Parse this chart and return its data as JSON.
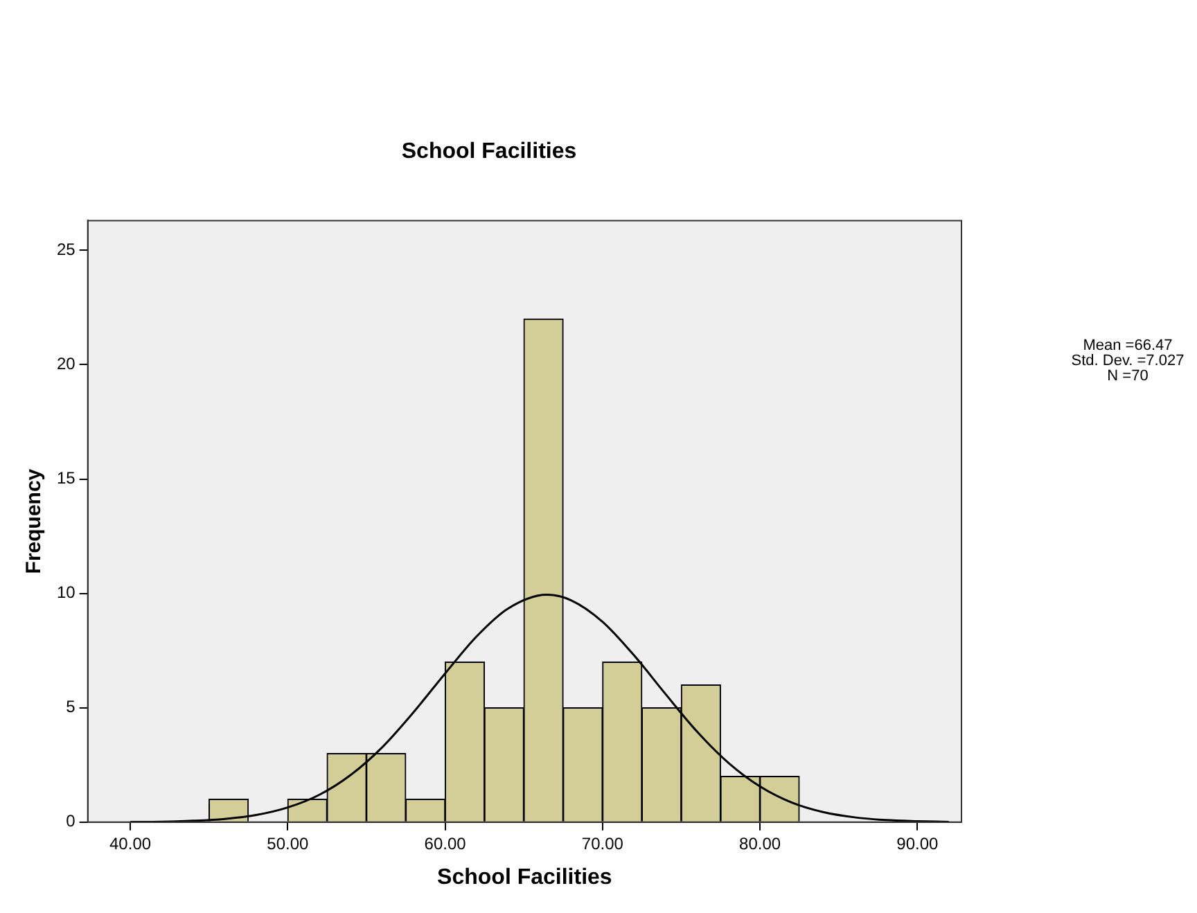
{
  "chart_data": {
    "type": "histogram",
    "title": "School Facilities",
    "xlabel": "School Facilities",
    "ylabel": "Frequency",
    "bins": [
      45,
      47.5,
      50,
      52.5,
      55,
      57.5,
      60,
      62.5,
      65,
      67.5,
      70,
      72.5,
      75,
      77.5,
      80,
      82.5
    ],
    "values": [
      1,
      0,
      1,
      3,
      3,
      1,
      7,
      5,
      22,
      5,
      7,
      5,
      6,
      2,
      2
    ],
    "color": "#d3ce98",
    "series": [
      {
        "type": "line",
        "color": "#000000",
        "x": [
          40,
          42,
          44,
          46,
          48,
          50,
          52,
          54,
          56,
          58,
          60,
          62,
          64,
          66.47,
          68,
          70,
          72,
          74,
          76,
          78,
          80,
          82,
          84,
          86,
          88,
          90,
          92
        ],
        "values": [
          0.01,
          0.02,
          0.06,
          0.14,
          0.31,
          0.64,
          1.19,
          2.06,
          3.27,
          4.81,
          6.5,
          8.12,
          9.34,
          9.94,
          9.7,
          8.76,
          7.29,
          5.6,
          3.96,
          2.59,
          1.56,
          0.86,
          0.44,
          0.21,
          0.09,
          0.04,
          0.01
        ]
      }
    ],
    "xlim": [
      37.3,
      92.8
    ],
    "xticks": [
      {
        "value": 40,
        "label": "40.00"
      },
      {
        "value": 50,
        "label": "50.00"
      },
      {
        "value": 60,
        "label": "60.00"
      },
      {
        "value": 70,
        "label": "70.00"
      },
      {
        "value": 80,
        "label": "80.00"
      },
      {
        "value": 90,
        "label": "90.00"
      }
    ],
    "ylim": [
      0,
      26.3
    ],
    "yticks": [
      0,
      5,
      10,
      15,
      20,
      25
    ],
    "grid": false,
    "legend": false,
    "marker": "none",
    "annotations": [
      "Mean =66.47",
      "Std. Dev. =7.027",
      "N =70"
    ]
  }
}
